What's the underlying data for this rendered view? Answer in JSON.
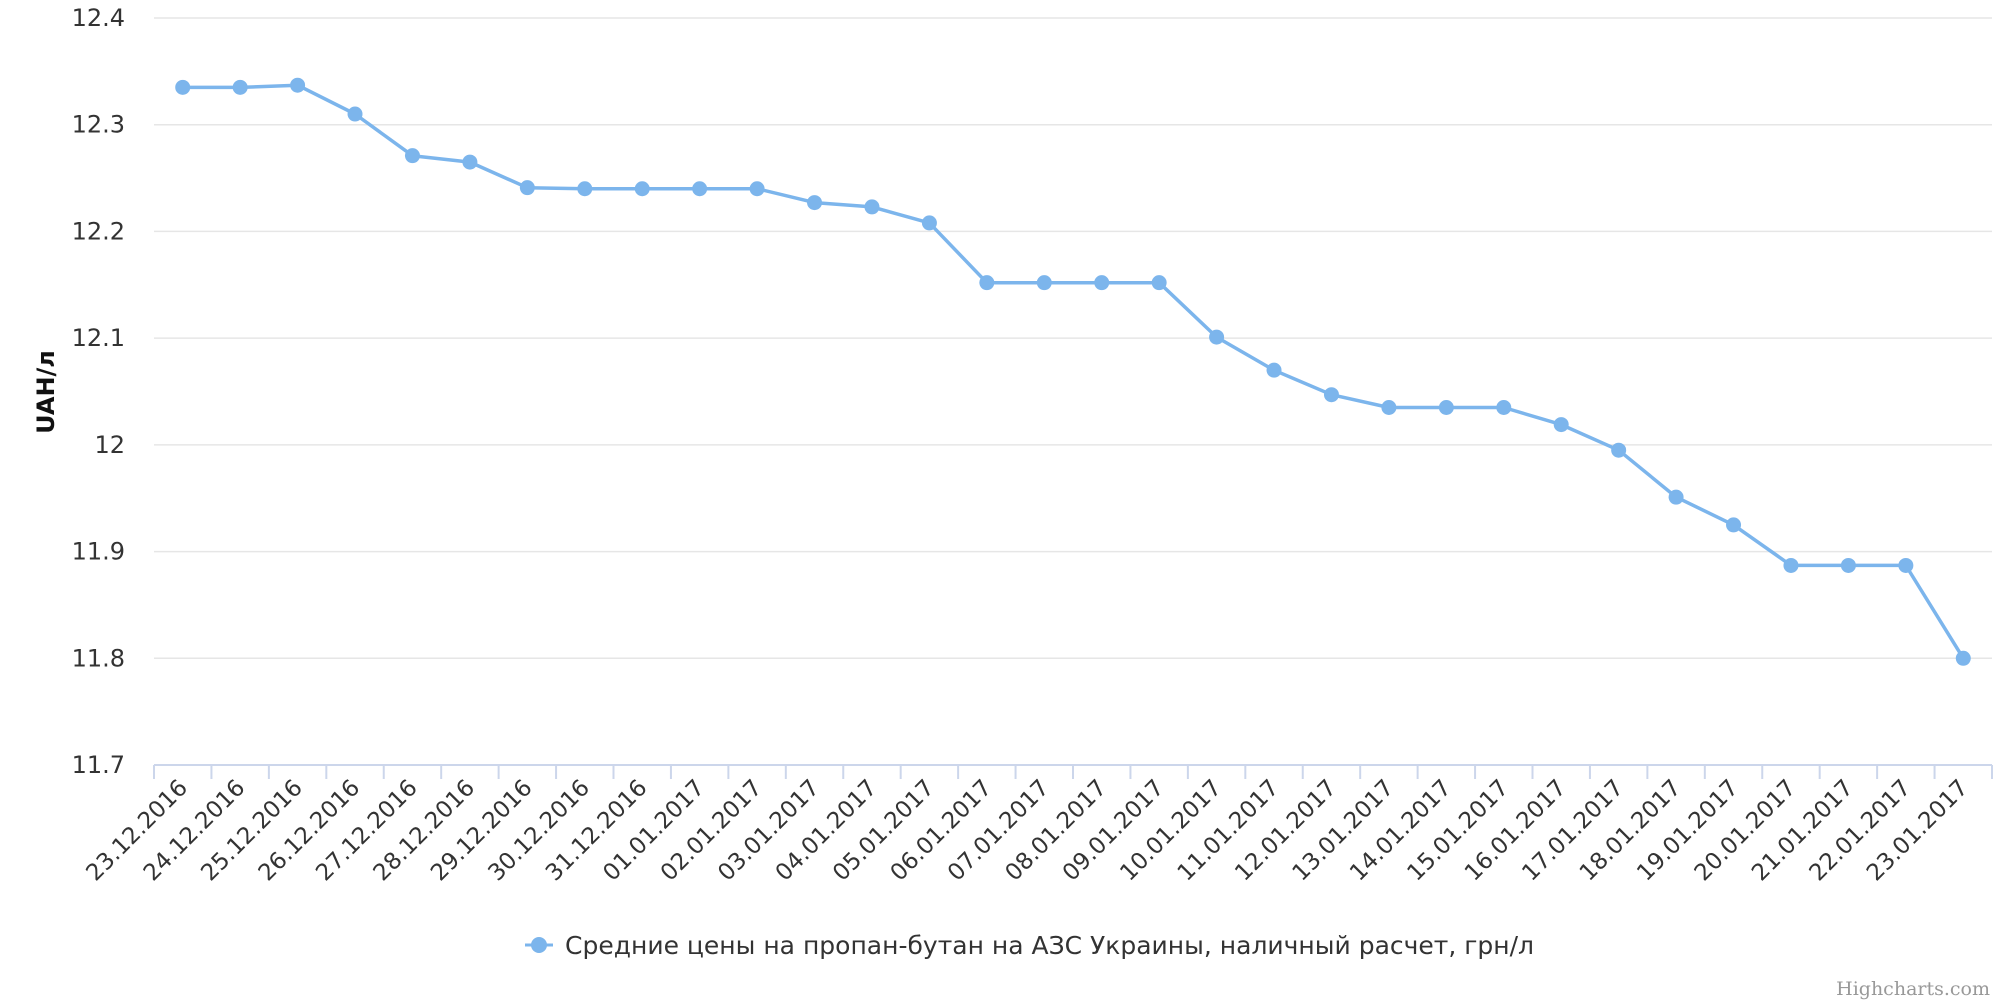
{
  "chart_data": {
    "type": "line",
    "ylabel": "UAH/л",
    "ylim": [
      11.7,
      12.4
    ],
    "y_ticks": [
      "11.7",
      "11.8",
      "11.9",
      "12",
      "12.1",
      "12.2",
      "12.3",
      "12.4"
    ],
    "grid": true,
    "legend_position": "bottom-center",
    "credits": "Highcharts.com",
    "categories": [
      "23.12.2016",
      "24.12.2016",
      "25.12.2016",
      "26.12.2016",
      "27.12.2016",
      "28.12.2016",
      "29.12.2016",
      "30.12.2016",
      "31.12.2016",
      "01.01.2017",
      "02.01.2017",
      "03.01.2017",
      "04.01.2017",
      "05.01.2017",
      "06.01.2017",
      "07.01.2017",
      "08.01.2017",
      "09.01.2017",
      "10.01.2017",
      "11.01.2017",
      "12.01.2017",
      "13.01.2017",
      "14.01.2017",
      "15.01.2017",
      "16.01.2017",
      "17.01.2017",
      "18.01.2017",
      "19.01.2017",
      "20.01.2017",
      "21.01.2017",
      "22.01.2017",
      "23.01.2017"
    ],
    "series": [
      {
        "name": "Средние цены на пропан-бутан на АЗС Украины, наличный расчет, грн/л",
        "color": "#7cb5ec",
        "values": [
          12.335,
          12.335,
          12.337,
          12.31,
          12.271,
          12.265,
          12.241,
          12.24,
          12.24,
          12.24,
          12.24,
          12.227,
          12.223,
          12.208,
          12.152,
          12.152,
          12.152,
          12.152,
          12.101,
          12.07,
          12.047,
          12.035,
          12.035,
          12.035,
          12.019,
          11.995,
          11.951,
          11.925,
          11.887,
          11.887,
          11.887,
          11.8
        ]
      }
    ]
  }
}
